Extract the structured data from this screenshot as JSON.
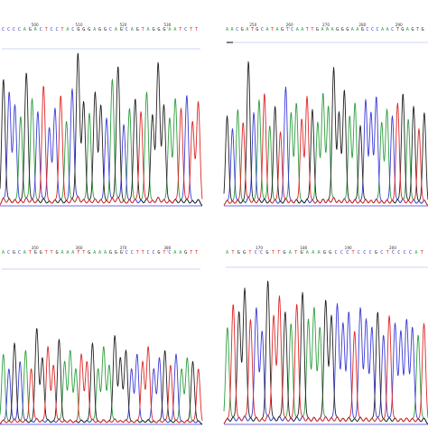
{
  "colors": {
    "A": "#2e9e3e",
    "C": "#3b3bd9",
    "G": "#222222",
    "T": "#e02626"
  },
  "chart_data": [
    {
      "type": "line",
      "seq": "CCCCAGACTCCTACGGGAGGCAGCAGTAGGGAATCTT",
      "positions": [
        "500",
        "510",
        "520",
        "530"
      ],
      "peaks": [
        {
          "b": "G",
          "h": 0.78
        },
        {
          "b": "C",
          "h": 0.7
        },
        {
          "b": "C",
          "h": 0.62
        },
        {
          "b": "A",
          "h": 0.55
        },
        {
          "b": "G",
          "h": 0.82
        },
        {
          "b": "A",
          "h": 0.66
        },
        {
          "b": "C",
          "h": 0.58
        },
        {
          "b": "T",
          "h": 0.74
        },
        {
          "b": "C",
          "h": 0.48
        },
        {
          "b": "C",
          "h": 0.6
        },
        {
          "b": "T",
          "h": 0.68
        },
        {
          "b": "A",
          "h": 0.52
        },
        {
          "b": "C",
          "h": 0.72
        },
        {
          "b": "G",
          "h": 0.94
        },
        {
          "b": "G",
          "h": 0.64
        },
        {
          "b": "A",
          "h": 0.57
        },
        {
          "b": "G",
          "h": 0.7
        },
        {
          "b": "G",
          "h": 0.62
        },
        {
          "b": "C",
          "h": 0.54
        },
        {
          "b": "A",
          "h": 0.78
        },
        {
          "b": "G",
          "h": 0.86
        },
        {
          "b": "C",
          "h": 0.5
        },
        {
          "b": "A",
          "h": 0.6
        },
        {
          "b": "G",
          "h": 0.66
        },
        {
          "b": "T",
          "h": 0.58
        },
        {
          "b": "A",
          "h": 0.7
        },
        {
          "b": "G",
          "h": 0.56
        },
        {
          "b": "G",
          "h": 0.88
        },
        {
          "b": "G",
          "h": 0.62
        },
        {
          "b": "A",
          "h": 0.54
        },
        {
          "b": "A",
          "h": 0.66
        },
        {
          "b": "T",
          "h": 0.6
        },
        {
          "b": "C",
          "h": 0.68
        },
        {
          "b": "T",
          "h": 0.52
        },
        {
          "b": "T",
          "h": 0.64
        }
      ]
    },
    {
      "type": "line",
      "seq": "AACGATGCATAGTCAATTGAAAGGGAAGCCCAACTGAGTG",
      "positions": [
        "250",
        "260",
        "270",
        "280",
        "290"
      ],
      "peaks": [
        {
          "b": "G",
          "h": 0.56
        },
        {
          "b": "C",
          "h": 0.48
        },
        {
          "b": "A",
          "h": 0.6
        },
        {
          "b": "T",
          "h": 0.52
        },
        {
          "b": "G",
          "h": 0.9
        },
        {
          "b": "C",
          "h": 0.58
        },
        {
          "b": "A",
          "h": 0.66
        },
        {
          "b": "T",
          "h": 0.7
        },
        {
          "b": "A",
          "h": 0.5
        },
        {
          "b": "G",
          "h": 0.62
        },
        {
          "b": "T",
          "h": 0.46
        },
        {
          "b": "C",
          "h": 0.74
        },
        {
          "b": "A",
          "h": 0.58
        },
        {
          "b": "A",
          "h": 0.64
        },
        {
          "b": "T",
          "h": 0.54
        },
        {
          "b": "T",
          "h": 0.68
        },
        {
          "b": "G",
          "h": 0.6
        },
        {
          "b": "A",
          "h": 0.52
        },
        {
          "b": "A",
          "h": 0.7
        },
        {
          "b": "A",
          "h": 0.62
        },
        {
          "b": "G",
          "h": 0.86
        },
        {
          "b": "G",
          "h": 0.58
        },
        {
          "b": "G",
          "h": 0.72
        },
        {
          "b": "A",
          "h": 0.56
        },
        {
          "b": "A",
          "h": 0.64
        },
        {
          "b": "G",
          "h": 0.5
        },
        {
          "b": "C",
          "h": 0.66
        },
        {
          "b": "C",
          "h": 0.58
        },
        {
          "b": "C",
          "h": 0.68
        },
        {
          "b": "A",
          "h": 0.52
        },
        {
          "b": "A",
          "h": 0.6
        },
        {
          "b": "C",
          "h": 0.56
        },
        {
          "b": "T",
          "h": 0.64
        },
        {
          "b": "G",
          "h": 0.7
        },
        {
          "b": "A",
          "h": 0.54
        },
        {
          "b": "G",
          "h": 0.62
        },
        {
          "b": "T",
          "h": 0.48
        },
        {
          "b": "G",
          "h": 0.58
        }
      ]
    },
    {
      "type": "line",
      "seq": "ACGCATGGTTGAAATTGAAAGGGCCTTCCGTCAAGTT",
      "positions": [
        "350",
        "360",
        "370",
        "380"
      ],
      "peaks": [
        {
          "b": "A",
          "h": 0.38
        },
        {
          "b": "C",
          "h": 0.3
        },
        {
          "b": "G",
          "h": 0.44
        },
        {
          "b": "C",
          "h": 0.34
        },
        {
          "b": "A",
          "h": 0.4
        },
        {
          "b": "T",
          "h": 0.3
        },
        {
          "b": "G",
          "h": 0.52
        },
        {
          "b": "G",
          "h": 0.36
        },
        {
          "b": "T",
          "h": 0.42
        },
        {
          "b": "T",
          "h": 0.32
        },
        {
          "b": "G",
          "h": 0.46
        },
        {
          "b": "A",
          "h": 0.34
        },
        {
          "b": "A",
          "h": 0.4
        },
        {
          "b": "A",
          "h": 0.3
        },
        {
          "b": "T",
          "h": 0.38
        },
        {
          "b": "T",
          "h": 0.34
        },
        {
          "b": "G",
          "h": 0.44
        },
        {
          "b": "A",
          "h": 0.3
        },
        {
          "b": "A",
          "h": 0.42
        },
        {
          "b": "A",
          "h": 0.32
        },
        {
          "b": "G",
          "h": 0.48
        },
        {
          "b": "G",
          "h": 0.36
        },
        {
          "b": "G",
          "h": 0.4
        },
        {
          "b": "C",
          "h": 0.3
        },
        {
          "b": "C",
          "h": 0.38
        },
        {
          "b": "T",
          "h": 0.34
        },
        {
          "b": "T",
          "h": 0.42
        },
        {
          "b": "C",
          "h": 0.3
        },
        {
          "b": "C",
          "h": 0.36
        },
        {
          "b": "G",
          "h": 0.4
        },
        {
          "b": "T",
          "h": 0.32
        },
        {
          "b": "C",
          "h": 0.38
        },
        {
          "b": "A",
          "h": 0.3
        },
        {
          "b": "A",
          "h": 0.36
        },
        {
          "b": "G",
          "h": 0.34
        },
        {
          "b": "T",
          "h": 0.3
        }
      ]
    },
    {
      "type": "line",
      "seq": "ATGGTCCGTTGATGAAAGGCCCTCCCGCTCCCCAT",
      "positions": [
        "170",
        "180",
        "190",
        "200"
      ],
      "peaks": [
        {
          "b": "A",
          "h": 0.5
        },
        {
          "b": "T",
          "h": 0.62
        },
        {
          "b": "G",
          "h": 0.58
        },
        {
          "b": "G",
          "h": 0.7
        },
        {
          "b": "T",
          "h": 0.54
        },
        {
          "b": "C",
          "h": 0.6
        },
        {
          "b": "C",
          "h": 0.48
        },
        {
          "b": "G",
          "h": 0.74
        },
        {
          "b": "T",
          "h": 0.56
        },
        {
          "b": "T",
          "h": 0.66
        },
        {
          "b": "G",
          "h": 0.58
        },
        {
          "b": "A",
          "h": 0.52
        },
        {
          "b": "T",
          "h": 0.62
        },
        {
          "b": "G",
          "h": 0.68
        },
        {
          "b": "A",
          "h": 0.54
        },
        {
          "b": "A",
          "h": 0.6
        },
        {
          "b": "A",
          "h": 0.5
        },
        {
          "b": "G",
          "h": 0.64
        },
        {
          "b": "G",
          "h": 0.56
        },
        {
          "b": "C",
          "h": 0.62
        },
        {
          "b": "C",
          "h": 0.52
        },
        {
          "b": "C",
          "h": 0.58
        },
        {
          "b": "T",
          "h": 0.48
        },
        {
          "b": "C",
          "h": 0.6
        },
        {
          "b": "C",
          "h": 0.54
        },
        {
          "b": "C",
          "h": 0.5
        },
        {
          "b": "G",
          "h": 0.58
        },
        {
          "b": "C",
          "h": 0.46
        },
        {
          "b": "T",
          "h": 0.56
        },
        {
          "b": "C",
          "h": 0.52
        },
        {
          "b": "C",
          "h": 0.48
        },
        {
          "b": "C",
          "h": 0.54
        },
        {
          "b": "C",
          "h": 0.5
        },
        {
          "b": "A",
          "h": 0.46
        },
        {
          "b": "T",
          "h": 0.52
        }
      ]
    }
  ]
}
